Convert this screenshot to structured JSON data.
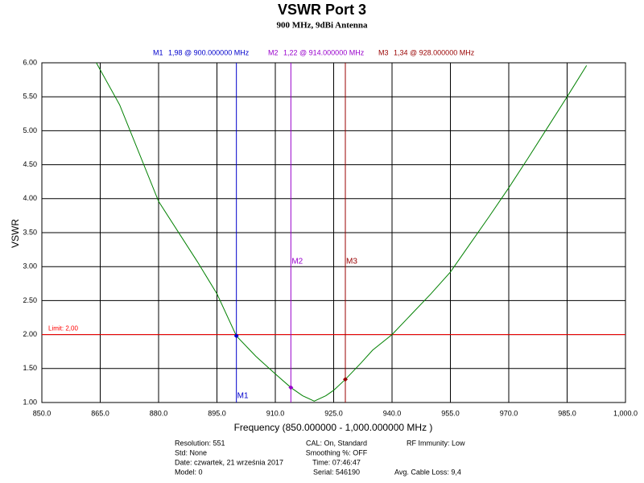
{
  "chart_data": {
    "type": "line",
    "title": "VSWR Port 3",
    "subtitle": "900 MHz, 9dBi Antenna",
    "x_label": "Frequency (850.000000 - 1,000.000000 MHz )",
    "y_label": "VSWR",
    "xlim": [
      850,
      1000
    ],
    "ylim": [
      1,
      6
    ],
    "xticks": [
      {
        "value": 850,
        "label": "850.0"
      },
      {
        "value": 865,
        "label": "865.0"
      },
      {
        "value": 880,
        "label": "880.0"
      },
      {
        "value": 895,
        "label": "895.0"
      },
      {
        "value": 910,
        "label": "910.0"
      },
      {
        "value": 925,
        "label": "925.0"
      },
      {
        "value": 940,
        "label": "940.0"
      },
      {
        "value": 955,
        "label": "955.0"
      },
      {
        "value": 970,
        "label": "970.0"
      },
      {
        "value": 985,
        "label": "985.0"
      },
      {
        "value": 1000,
        "label": "1,000.0"
      }
    ],
    "yticks": [
      {
        "value": 1,
        "label": "1.00"
      },
      {
        "value": 1.5,
        "label": "1.50"
      },
      {
        "value": 2,
        "label": "2.00"
      },
      {
        "value": 2.5,
        "label": "2.50"
      },
      {
        "value": 3,
        "label": "3.00"
      },
      {
        "value": 3.5,
        "label": "3.50"
      },
      {
        "value": 4,
        "label": "4.00"
      },
      {
        "value": 4.5,
        "label": "4.50"
      },
      {
        "value": 5,
        "label": "5.00"
      },
      {
        "value": 5.5,
        "label": "5.50"
      },
      {
        "value": 6,
        "label": "6.00"
      }
    ],
    "grid": true,
    "x": [
      864,
      870,
      880,
      890,
      895,
      900,
      905,
      910,
      914,
      917,
      920,
      923,
      925,
      928,
      932,
      935,
      940,
      945,
      950,
      955,
      960,
      965,
      970,
      975,
      980,
      985,
      990
    ],
    "series": [
      {
        "color": "#008000",
        "values": [
          6.0,
          5.38,
          3.96,
          3.07,
          2.6,
          1.98,
          1.68,
          1.42,
          1.22,
          1.1,
          1.02,
          1.1,
          1.18,
          1.34,
          1.58,
          1.77,
          2.0,
          2.3,
          2.6,
          2.92,
          3.33,
          3.74,
          4.16,
          4.6,
          5.05,
          5.5,
          5.96
        ]
      }
    ],
    "limit": {
      "value": 2,
      "label": "Limit: 2,00",
      "color": "#ff0000"
    },
    "markers": [
      {
        "name": "M1",
        "x": 900,
        "value": 1.98,
        "label": "1,98 @ 900.000000 MHz",
        "color": "#0000cc"
      },
      {
        "name": "M2",
        "x": 914,
        "value": 1.22,
        "label": "1,22 @ 914.000000 MHz",
        "color": "#9900cc"
      },
      {
        "name": "M3",
        "x": 928,
        "value": 1.34,
        "label": "1,34 @ 928.000000 MHz",
        "color": "#990000"
      }
    ],
    "footer_left": [
      "Resolution: 551",
      "Std: None",
      "Date: czwartek, 21 września 2017",
      "Model: 0"
    ],
    "footer_middle": [
      "CAL: On, Standard",
      "Smoothing %:  OFF",
      "Time: 07:46:47",
      "Serial: 546190"
    ],
    "footer_right_top": "RF Immunity: Low",
    "footer_right_bottom": "Avg. Cable Loss: 9,4"
  }
}
